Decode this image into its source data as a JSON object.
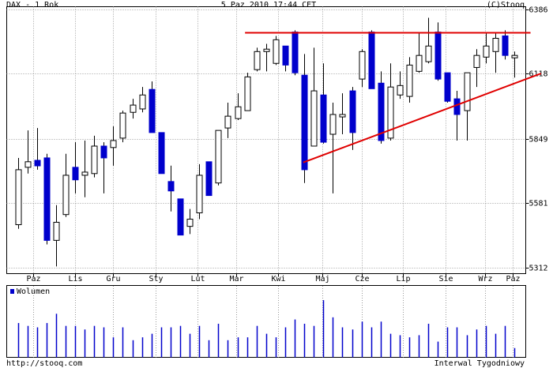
{
  "chart_data": {
    "type": "candlestick",
    "title": "DAX - 1 Rok",
    "subtitle": "5 Paz 2010 17:44 CET",
    "copyright": "(C)Stooq",
    "volume_label": "Wolumen",
    "footer_left": "http://stooq.com",
    "footer_right": "Interwal Tygodniowy",
    "color_up": "#ffffff",
    "color_down": "#0000cc",
    "line_color": "#e00000",
    "grid": true,
    "xlim": [
      -1.16,
      53.2
    ],
    "xticks": [
      {
        "value": 1.6,
        "label": "Paz"
      },
      {
        "value": 6,
        "label": "Lis"
      },
      {
        "value": 10,
        "label": "Gru"
      },
      {
        "value": 14.4,
        "label": "Sty"
      },
      {
        "value": 18.8,
        "label": "Lut"
      },
      {
        "value": 22.9,
        "label": "Mar"
      },
      {
        "value": 27.3,
        "label": "Kwi"
      },
      {
        "value": 31.9,
        "label": "Maj"
      },
      {
        "value": 36,
        "label": "Cze"
      },
      {
        "value": 40.3,
        "label": "Lip"
      },
      {
        "value": 44.8,
        "label": "Sie"
      },
      {
        "value": 48.9,
        "label": "Wrz"
      },
      {
        "value": 51.8,
        "label": "Paz"
      }
    ],
    "ylim": [
      5289,
      6396
    ],
    "yticks": [
      5312,
      5581,
      5849,
      6118,
      6386
    ],
    "vlim": [
      0,
      100
    ],
    "open": [
      5492,
      5730,
      5759,
      5769,
      5427,
      5534,
      5730,
      5697,
      5704,
      5818,
      5812,
      5851,
      5958,
      5972,
      6053,
      5874,
      5671,
      5599,
      5485,
      5541,
      5753,
      5665,
      5893,
      5932,
      5965,
      6135,
      6210,
      6161,
      6233,
      6291,
      6112,
      5818,
      6030,
      5867,
      5939,
      6047,
      6096,
      6291,
      6079,
      5851,
      6030,
      6024,
      6128,
      6168,
      6291,
      6122,
      6014,
      5965,
      6144,
      6187,
      6210,
      6275,
      6184
    ],
    "high": [
      5769,
      5883,
      5893,
      5786,
      5573,
      5786,
      5834,
      5841,
      5861,
      5834,
      5900,
      5965,
      6014,
      6063,
      6086,
      5874,
      5737,
      5599,
      5557,
      5743,
      5753,
      5883,
      5998,
      6037,
      6122,
      6226,
      6242,
      6275,
      6233,
      6298,
      6200,
      6226,
      6161,
      5998,
      6037,
      6063,
      6220,
      6298,
      6128,
      6161,
      6128,
      6187,
      6291,
      6350,
      6331,
      6122,
      6047,
      6122,
      6220,
      6285,
      6291,
      6298,
      6210
    ],
    "low": [
      5475,
      5704,
      5720,
      5410,
      5319,
      5524,
      5622,
      5606,
      5688,
      5622,
      5737,
      5834,
      5932,
      5958,
      5874,
      5704,
      5547,
      5449,
      5453,
      5515,
      5613,
      5655,
      5851,
      5926,
      5965,
      6128,
      6128,
      6154,
      6128,
      6112,
      5665,
      5818,
      5828,
      5622,
      5867,
      5802,
      6063,
      6056,
      5828,
      5841,
      6014,
      5998,
      6122,
      6161,
      6089,
      5998,
      5841,
      5841,
      6063,
      6161,
      6122,
      6177,
      6102
    ],
    "close": [
      5720,
      5753,
      5736,
      5427,
      5502,
      5697,
      5678,
      5710,
      5818,
      5769,
      5841,
      5955,
      5988,
      6030,
      5874,
      5704,
      5632,
      5449,
      5515,
      5697,
      5613,
      5883,
      5942,
      5981,
      6105,
      6210,
      6220,
      6259,
      6154,
      6122,
      5720,
      6047,
      5834,
      5949,
      5949,
      5874,
      6210,
      6056,
      5841,
      6063,
      6069,
      6154,
      6194,
      6233,
      6096,
      6004,
      5949,
      6122,
      6194,
      6233,
      6265,
      6194,
      6194
    ],
    "volume": [
      48,
      44,
      42,
      48,
      61,
      44,
      44,
      39,
      44,
      42,
      28,
      42,
      24,
      28,
      33,
      42,
      42,
      44,
      33,
      44,
      24,
      47,
      24,
      28,
      28,
      44,
      33,
      28,
      42,
      53,
      47,
      44,
      80,
      56,
      42,
      39,
      50,
      42,
      50,
      33,
      31,
      28,
      31,
      47,
      22,
      42,
      42,
      31,
      39,
      44,
      33,
      44,
      13
    ],
    "lines": [
      {
        "from": [
          23.8,
          6288
        ],
        "to": [
          53.7,
          6288
        ]
      },
      {
        "from": [
          29.9,
          5750
        ],
        "to": [
          54.8,
          6119
        ]
      }
    ]
  }
}
